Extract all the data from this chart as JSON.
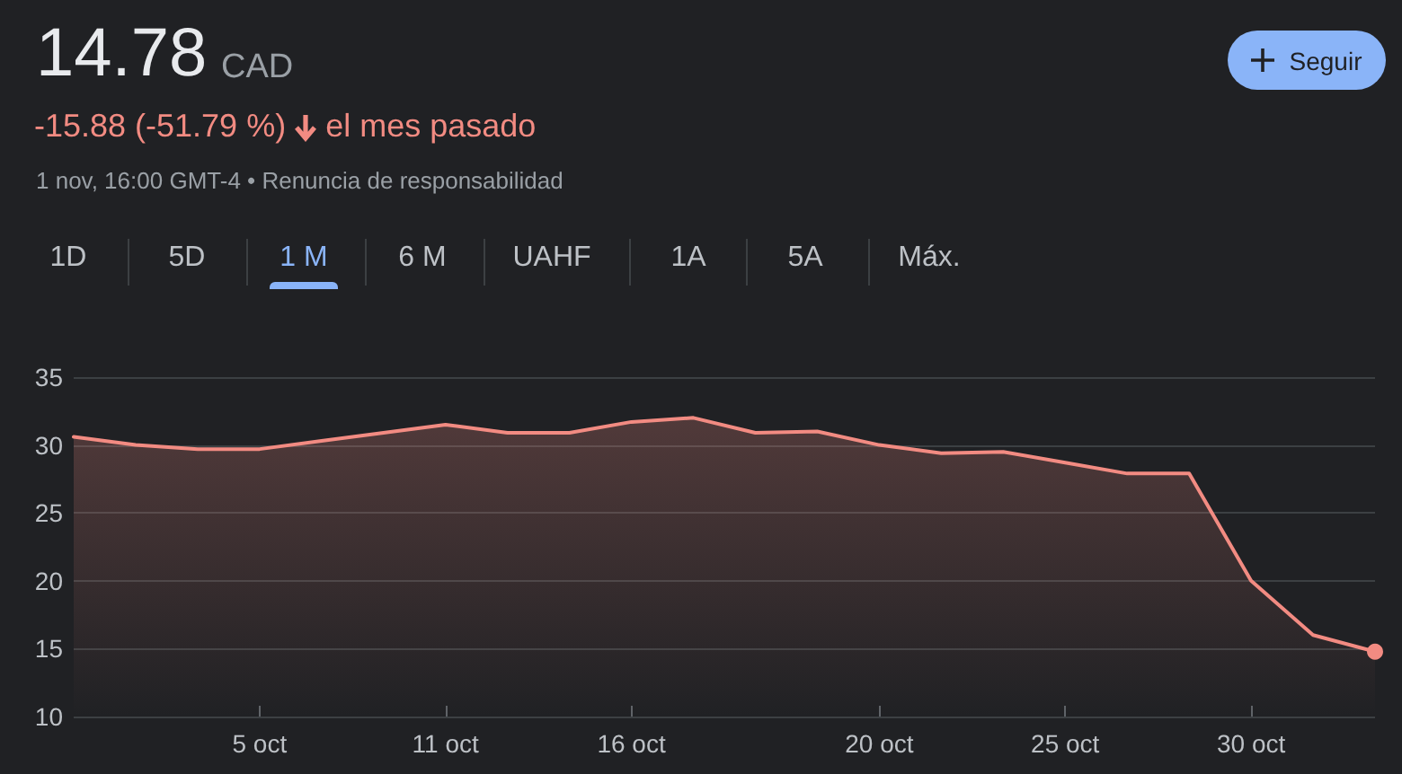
{
  "chart_data": {
    "type": "area",
    "title": "14.78",
    "annotations": [
      "CAD",
      "-15.88 (-51.79 %)",
      "el mes pasado",
      "1 nov, 16:00 GMT-4 • Renuncia de responsabilidad",
      "1D",
      "5D",
      "1 M",
      "6 M",
      "UAHF",
      "1A",
      "5A",
      "Máx.",
      "Seguir"
    ],
    "categories": [
      null,
      null,
      null,
      "5 oct",
      null,
      null,
      "11 oct",
      null,
      null,
      "16 oct",
      null,
      null,
      null,
      "20 oct",
      null,
      null,
      "25 oct",
      null,
      null,
      "30 oct",
      null,
      null
    ],
    "series": [
      {
        "color": "#f28b82",
        "values": [
          30.6,
          30.0,
          29.7,
          29.7,
          30.3,
          30.9,
          31.5,
          30.9,
          30.9,
          31.7,
          32.0,
          30.9,
          31.0,
          30.0,
          29.4,
          29.5,
          28.7,
          27.9,
          27.9,
          20.0,
          16.0,
          14.78
        ]
      }
    ],
    "ylim": [
      10,
      35
    ],
    "yticks": [
      10,
      15,
      20,
      25,
      30,
      35
    ],
    "grid": "y"
  }
}
